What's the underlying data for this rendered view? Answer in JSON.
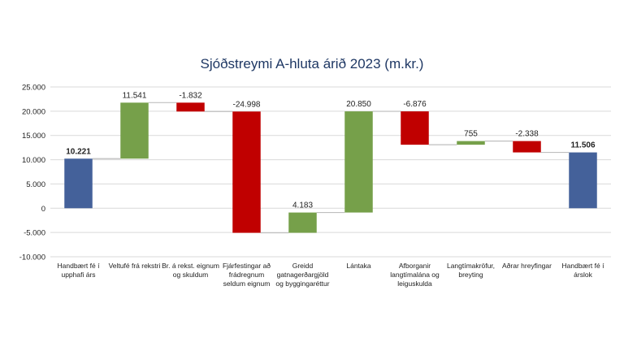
{
  "chart_data": {
    "type": "bar",
    "subtype": "waterfall",
    "title": "Sjóðstreymi A-hluta árið 2023 (m.kr.)",
    "ylim": [
      -10000,
      25000
    ],
    "yticks": [
      25000,
      20000,
      15000,
      10000,
      5000,
      0,
      -5000,
      -10000
    ],
    "ytick_labels": [
      "25.000",
      "20.000",
      "15.000",
      "10.000",
      "5.000",
      "0",
      "-5.000",
      "-10.000"
    ],
    "grid": true,
    "legend": "none",
    "categories": [
      [
        "Handbært fé í",
        "upphafi árs"
      ],
      [
        "Veltufé frá rekstri"
      ],
      [
        "Br. á rekst. eignum",
        "og skuldum"
      ],
      [
        "Fjárfestingar að",
        "frádregnum",
        "seldum eignum"
      ],
      [
        "Greidd",
        "gatnagerðargjöld",
        "og byggingaréttur"
      ],
      [
        "Lántaka"
      ],
      [
        "Afborganir",
        "langtímalána og",
        "leiguskulda"
      ],
      [
        "Langtímakröfur,",
        "breyting"
      ],
      [
        "Aðrar hreyfingar"
      ],
      [
        "Handbært fé í",
        "árslok"
      ]
    ],
    "values": [
      10221,
      11541,
      -1832,
      -24998,
      4183,
      20850,
      -6876,
      755,
      -2338,
      11506
    ],
    "kinds": [
      "total",
      "delta",
      "delta",
      "delta",
      "delta",
      "delta",
      "delta",
      "delta",
      "delta",
      "total"
    ],
    "value_labels": [
      "10.221",
      "11.541",
      "-1.832",
      "-24.998",
      "4.183",
      "20.850",
      "-6.876",
      "755",
      "-2.338",
      "11.506"
    ],
    "colors": {
      "total": "#44619a",
      "increase": "#76a04a",
      "decrease": "#c00000",
      "grid": "#d9d9d9",
      "connector": "#bfbfbf",
      "title": "#1f3864"
    }
  }
}
